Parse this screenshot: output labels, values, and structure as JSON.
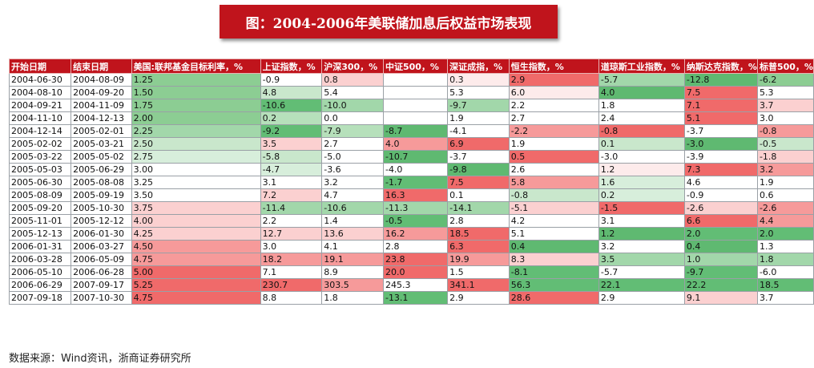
{
  "title": "图：2004-2006年美联储加息后权益市场表现",
  "source": "数据来源：Wind资讯，浙商证券研究所",
  "colors": {
    "header_bg": "#c0141c",
    "header_text": "#ffffff",
    "positive": "#f06a6a",
    "negative": "#62bd75",
    "neutral": "#ffffff"
  },
  "chart_data": {
    "type": "table",
    "columns": [
      "开始日期",
      "结束日期",
      "美国:联邦基金目标利率，%",
      "上证指数，%",
      "沪深300，%",
      "中证500，%",
      "深证成指，%",
      "恒生指数，%",
      "道琼斯工业指数，%",
      "纳斯达克指数，%",
      "标普500，%"
    ],
    "rows": [
      [
        "2004-06-30",
        "2004-08-09",
        "1.25",
        "-0.9",
        "0.8",
        "",
        "0.3",
        "2.9",
        "-5.7",
        "-12.8",
        "-6.2"
      ],
      [
        "2004-08-10",
        "2004-09-20",
        "1.50",
        "4.8",
        "5.4",
        "",
        "5.3",
        "6.0",
        "4.0",
        "7.5",
        "5.3"
      ],
      [
        "2004-09-21",
        "2004-11-09",
        "1.75",
        "-10.6",
        "-10.0",
        "",
        "-9.7",
        "2.2",
        "1.8",
        "7.1",
        "3.7"
      ],
      [
        "2004-11-10",
        "2004-12-13",
        "2.00",
        "0.2",
        "0.0",
        "",
        "1.9",
        "2.7",
        "2.4",
        "5.1",
        "3.0"
      ],
      [
        "2004-12-14",
        "2005-02-01",
        "2.25",
        "-9.2",
        "-7.9",
        "-8.7",
        "-4.1",
        "-2.2",
        "-0.8",
        "-3.7",
        "-0.8"
      ],
      [
        "2005-02-02",
        "2005-03-21",
        "2.50",
        "3.5",
        "2.7",
        "4.0",
        "6.9",
        "1.9",
        "0.1",
        "-3.0",
        "-0.5"
      ],
      [
        "2005-03-22",
        "2005-05-02",
        "2.75",
        "-5.8",
        "-5.0",
        "-10.7",
        "-3.7",
        "0.5",
        "-3.0",
        "-3.9",
        "-1.8"
      ],
      [
        "2005-05-03",
        "2005-06-29",
        "3.00",
        "-4.7",
        "-3.6",
        "-4.0",
        "-9.8",
        "2.6",
        "1.2",
        "7.3",
        "3.2"
      ],
      [
        "2005-06-30",
        "2005-08-08",
        "3.25",
        "3.1",
        "3.2",
        "-1.7",
        "7.5",
        "5.8",
        "1.6",
        "4.6",
        "1.9"
      ],
      [
        "2005-08-09",
        "2005-09-19",
        "3.50",
        "7.2",
        "4.7",
        "16.3",
        "0.1",
        "-0.8",
        "0.2",
        "-0.9",
        "0.6"
      ],
      [
        "2005-09-20",
        "2005-10-30",
        "3.75",
        "-11.4",
        "-10.6",
        "-11.3",
        "-14.1",
        "-5.1",
        "-1.5",
        "-2.6",
        "-2.6"
      ],
      [
        "2005-11-01",
        "2005-12-12",
        "4.00",
        "2.2",
        "1.4",
        "-0.5",
        "2.8",
        "4.2",
        "3.1",
        "6.6",
        "4.4"
      ],
      [
        "2005-12-13",
        "2006-01-30",
        "4.25",
        "12.7",
        "13.6",
        "16.2",
        "18.5",
        "5.1",
        "1.2",
        "2.0",
        "2.0"
      ],
      [
        "2006-01-31",
        "2006-03-27",
        "4.50",
        "3.0",
        "4.1",
        "2.8",
        "6.3",
        "0.4",
        "3.2",
        "0.4",
        "1.3"
      ],
      [
        "2006-03-28",
        "2006-05-09",
        "4.75",
        "18.2",
        "19.1",
        "23.8",
        "19.9",
        "8.3",
        "3.5",
        "1.0",
        "1.8"
      ],
      [
        "2006-05-10",
        "2006-06-28",
        "5.00",
        "7.1",
        "8.9",
        "20.0",
        "1.5",
        "-8.1",
        "-5.7",
        "-9.7",
        "-6.0"
      ],
      [
        "2006-06-29",
        "2007-09-17",
        "5.25",
        "230.7",
        "303.5",
        "245.3",
        "341.1",
        "56.3",
        "22.1",
        "22.2",
        "18.5"
      ],
      [
        "2007-09-18",
        "2007-10-30",
        "4.75",
        "8.8",
        "1.8",
        "-13.1",
        "2.9",
        "28.6",
        "2.9",
        "9.1",
        "3.7"
      ]
    ],
    "cell_colors": [
      [
        "",
        "",
        "#8ccd93",
        "#ffffff",
        "#fbd0d0",
        "",
        "#fdebeb",
        "#f06a6a",
        "#a2d7aa",
        "#5fb971",
        "#8ccd93"
      ],
      [
        "",
        "",
        "#8ccd93",
        "#c9e7cc",
        "#ffffff",
        "",
        "#ffffff",
        "#fdebeb",
        "#5fb971",
        "#f06a6a",
        "#ffffff"
      ],
      [
        "",
        "",
        "#8ccd93",
        "#62bd75",
        "#a2d7aa",
        "",
        "#a2d7aa",
        "#ffffff",
        "#ffffff",
        "#f06a6a",
        "#fbd0d0"
      ],
      [
        "",
        "",
        "#8ccd93",
        "#b6e0bb",
        "#ffffff",
        "",
        "#ffffff",
        "#ffffff",
        "#ffffff",
        "#f06a6a",
        "#ffffff"
      ],
      [
        "",
        "",
        "#a2d7aa",
        "#62bd75",
        "#b6e0bb",
        "#5fb971",
        "#ffffff",
        "#f69a9a",
        "#f06a6a",
        "#ffffff",
        "#f69a9a"
      ],
      [
        "",
        "",
        "#c9e7cc",
        "#fbd0d0",
        "#ffffff",
        "#f69a9a",
        "#f06a6a",
        "#ffffff",
        "#c9e7cc",
        "#5fb971",
        "#c9e7cc"
      ],
      [
        "",
        "",
        "#d7eedb",
        "#c9e7cc",
        "#ffffff",
        "#5fb971",
        "#ffffff",
        "#f06a6a",
        "#ffffff",
        "#ffffff",
        "#fbd0d0"
      ],
      [
        "",
        "",
        "#ffffff",
        "#d7eedb",
        "#ffffff",
        "#ffffff",
        "#5fb971",
        "#ffffff",
        "#fdebeb",
        "#f06a6a",
        "#f69a9a"
      ],
      [
        "",
        "",
        "#ffffff",
        "#ffffff",
        "#ffffff",
        "#62bd75",
        "#f06a6a",
        "#f69a9a",
        "#d7eedb",
        "#ffffff",
        "#ffffff"
      ],
      [
        "",
        "",
        "#ffffff",
        "#fbd0d0",
        "#ffffff",
        "#f06a6a",
        "#ffffff",
        "#c9e7cc",
        "#d7eedb",
        "#ffffff",
        "#ffffff"
      ],
      [
        "",
        "",
        "#fbd0d0",
        "#a2d7aa",
        "#a2d7aa",
        "#a2d7aa",
        "#a2d7aa",
        "#fbd0d0",
        "#f06a6a",
        "#fbd0d0",
        "#f69a9a"
      ],
      [
        "",
        "",
        "#fbd0d0",
        "#ffffff",
        "#ffffff",
        "#62bd75",
        "#ffffff",
        "#ffffff",
        "#ffffff",
        "#f06a6a",
        "#f69a9a"
      ],
      [
        "",
        "",
        "#fbd0d0",
        "#fbd0d0",
        "#fbd0d0",
        "#f69a9a",
        "#f06a6a",
        "#ffffff",
        "#5fb971",
        "#62bd75",
        "#62bd75"
      ],
      [
        "",
        "",
        "#f69a9a",
        "#ffffff",
        "#ffffff",
        "#ffffff",
        "#f06a6a",
        "#5fb971",
        "#ffffff",
        "#5fb971",
        "#ffffff"
      ],
      [
        "",
        "",
        "#f69a9a",
        "#f69a9a",
        "#f69a9a",
        "#f06a6a",
        "#f69a9a",
        "#fbd0d0",
        "#a2d7aa",
        "#a2d7aa",
        "#a2d7aa"
      ],
      [
        "",
        "",
        "#f06a6a",
        "#ffffff",
        "#ffffff",
        "#f06a6a",
        "#ffffff",
        "#62bd75",
        "#ffffff",
        "#62bd75",
        "#ffffff"
      ],
      [
        "",
        "",
        "#f06a6a",
        "#f06a6a",
        "#f69a9a",
        "#ffffff",
        "#f06a6a",
        "#62bd75",
        "#62bd75",
        "#62bd75",
        "#62bd75"
      ],
      [
        "",
        "",
        "#f06a6a",
        "#ffffff",
        "#ffffff",
        "#62bd75",
        "#ffffff",
        "#f06a6a",
        "#ffffff",
        "#fbd0d0",
        "#ffffff"
      ]
    ]
  }
}
